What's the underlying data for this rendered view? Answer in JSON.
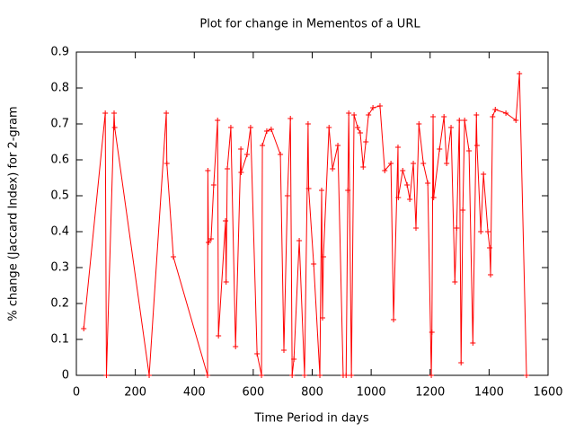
{
  "chart_data": {
    "type": "line",
    "title": "Plot for change in Mementos of a URL",
    "x_label": "Time Period in days",
    "y_label": "% change (Jaccard Index) for 2-gram",
    "x": [
      25,
      98,
      102,
      128,
      130,
      247,
      305,
      307,
      329,
      445,
      446,
      448,
      457,
      466,
      479,
      482,
      506,
      508,
      512,
      524,
      540,
      558,
      559,
      579,
      591,
      613,
      628,
      631,
      646,
      661,
      692,
      704,
      716,
      726,
      732,
      738,
      756,
      774,
      786,
      788,
      805,
      826,
      832,
      835,
      838,
      857,
      869,
      887,
      905,
      915,
      921,
      924,
      933,
      942,
      954,
      963,
      973,
      982,
      991,
      1006,
      1030,
      1046,
      1067,
      1076,
      1091,
      1092,
      1107,
      1122,
      1131,
      1143,
      1152,
      1162,
      1177,
      1192,
      1204,
      1206,
      1210,
      1212,
      1232,
      1247,
      1256,
      1271,
      1284,
      1290,
      1299,
      1305,
      1311,
      1317,
      1332,
      1345,
      1357,
      1359,
      1372,
      1381,
      1396,
      1402,
      1405,
      1412,
      1421,
      1457,
      1491,
      1503,
      1527
    ],
    "values": [
      0.13,
      0.73,
      0,
      0.73,
      0.69,
      0,
      0.73,
      0.59,
      0.33,
      0,
      0.57,
      0.37,
      0.38,
      0.53,
      0.71,
      0.11,
      0.43,
      0.26,
      0.575,
      0.69,
      0.08,
      0.63,
      0.565,
      0.615,
      0.69,
      0.06,
      0,
      0.64,
      0.68,
      0.685,
      0.615,
      0.07,
      0.5,
      0.715,
      0,
      0.045,
      0.375,
      0,
      0.7,
      0.52,
      0.31,
      0,
      0.515,
      0.16,
      0.33,
      0.69,
      0.575,
      0.64,
      0,
      0,
      0.515,
      0.73,
      0,
      0.725,
      0.69,
      0.675,
      0.58,
      0.65,
      0.725,
      0.745,
      0.75,
      0.57,
      0.59,
      0.155,
      0.635,
      0.495,
      0.57,
      0.53,
      0.49,
      0.59,
      0.41,
      0.7,
      0.59,
      0.535,
      0,
      0.12,
      0.72,
      0.495,
      0.63,
      0.72,
      0.59,
      0.69,
      0.26,
      0.41,
      0.71,
      0.035,
      0.46,
      0.71,
      0.625,
      0.09,
      0.725,
      0.64,
      0.4,
      0.56,
      0.4,
      0.355,
      0.28,
      0.72,
      0.74,
      0.73,
      0.71,
      0.84,
      0
    ],
    "color": "#ff0000",
    "xlim": [
      0,
      1600
    ],
    "xticks": [
      0,
      200,
      400,
      600,
      800,
      1000,
      1200,
      1400,
      1600
    ],
    "ylim": [
      0,
      0.9
    ],
    "yticks": [
      0,
      0.1,
      0.2,
      0.3,
      0.4,
      0.5,
      0.6,
      0.7,
      0.8,
      0.9
    ]
  }
}
